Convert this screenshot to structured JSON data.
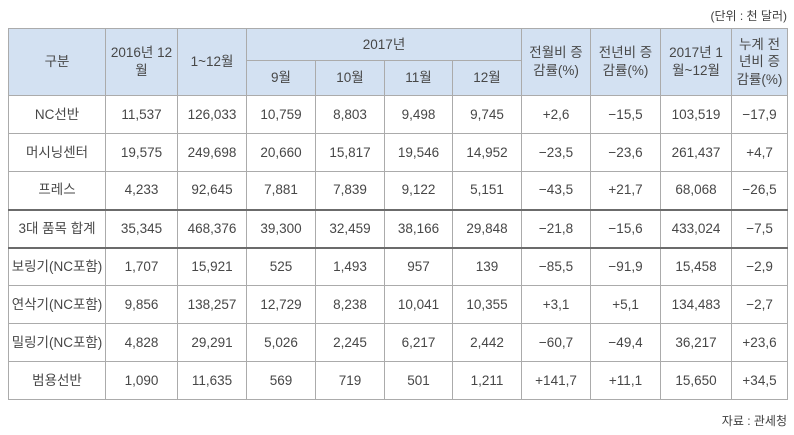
{
  "unit_note": "(단위 : 천 달러)",
  "source_note": "자료 : 관세청",
  "table": {
    "header": {
      "col_gubun": "구분",
      "col_2016_12": "2016년 12월",
      "col_1_12": "1~12월",
      "group_2017": "2017년",
      "months": [
        "9월",
        "10월",
        "11월",
        "12월"
      ],
      "col_mom": "전월비 증감률(%)",
      "col_yoy": "전년비 증감률(%)",
      "col_2017_cum": "2017년 1월~12월",
      "col_cum_yoy": "누계 전년비 증감률(%)"
    },
    "rows": [
      {
        "label": "NC선반",
        "total": false,
        "values": [
          "11,537",
          "126,033",
          "10,759",
          "8,803",
          "9,498",
          "9,745",
          "+2,6",
          "−15,5",
          "103,519",
          "−17,9"
        ]
      },
      {
        "label": "머시닝센터",
        "total": false,
        "values": [
          "19,575",
          "249,698",
          "20,660",
          "15,817",
          "19,546",
          "14,952",
          "−23,5",
          "−23,6",
          "261,437",
          "+4,7"
        ]
      },
      {
        "label": "프레스",
        "total": false,
        "values": [
          "4,233",
          "92,645",
          "7,881",
          "7,839",
          "9,122",
          "5,151",
          "−43,5",
          "+21,7",
          "68,068",
          "−26,5"
        ]
      },
      {
        "label": "3대 품목 합계",
        "total": true,
        "values": [
          "35,345",
          "468,376",
          "39,300",
          "32,459",
          "38,166",
          "29,848",
          "−21,8",
          "−15,6",
          "433,024",
          "−7,5"
        ]
      },
      {
        "label": "보링기(NC포함)",
        "total": false,
        "values": [
          "1,707",
          "15,921",
          "525",
          "1,493",
          "957",
          "139",
          "−85,5",
          "−91,9",
          "15,458",
          "−2,9"
        ]
      },
      {
        "label": "연삭기(NC포함)",
        "total": false,
        "values": [
          "9,856",
          "138,257",
          "12,729",
          "8,238",
          "10,041",
          "10,355",
          "+3,1",
          "+5,1",
          "134,483",
          "−2,7"
        ]
      },
      {
        "label": "밀링기(NC포함)",
        "total": false,
        "values": [
          "4,828",
          "29,291",
          "5,026",
          "2,245",
          "6,217",
          "2,442",
          "−60,7",
          "−49,4",
          "36,217",
          "+23,6"
        ]
      },
      {
        "label": "범용선반",
        "total": false,
        "values": [
          "1,090",
          "11,635",
          "569",
          "719",
          "501",
          "1,211",
          "+141,7",
          "+11,1",
          "15,650",
          "+34,5"
        ]
      }
    ]
  }
}
